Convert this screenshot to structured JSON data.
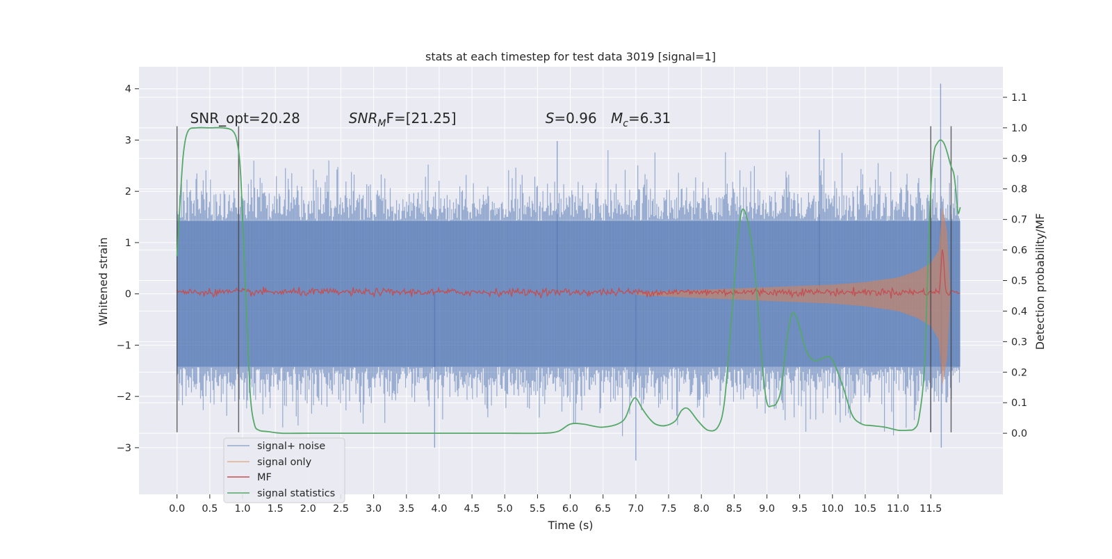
{
  "chart_data": {
    "type": "line",
    "title": "stats at each timestep for test data 3019 [signal=1]",
    "xlabel": "Time (s)",
    "ylabel_left": "Whitened strain",
    "ylabel_right": "Detection probability/MF",
    "xlim": [
      -0.58,
      12.6
    ],
    "ylim_left": [
      -3.91,
      4.43
    ],
    "ylim_right": [
      -0.2,
      1.2
    ],
    "x_ticks": [
      "0.0",
      "0.5",
      "1.0",
      "1.5",
      "2.0",
      "2.5",
      "3.0",
      "3.5",
      "4.0",
      "4.5",
      "5.0",
      "5.5",
      "6.0",
      "6.5",
      "7.0",
      "7.5",
      "8.0",
      "8.5",
      "9.0",
      "9.5",
      "10.0",
      "10.5",
      "11.0",
      "11.5"
    ],
    "y_ticks_left": [
      "−3",
      "−2",
      "−1",
      "0",
      "1",
      "2",
      "3",
      "4"
    ],
    "y_ticks_right": [
      "0.0",
      "0.1",
      "0.2",
      "0.3",
      "0.4",
      "0.5",
      "0.6",
      "0.7",
      "0.8",
      "0.9",
      "1.0",
      "1.1"
    ],
    "grid": true,
    "legend_position": "lower-left",
    "annotations": [
      {
        "text": "SNR_opt=20.28",
        "x": 0.2,
        "y": 3.33
      },
      {
        "text": "SNR",
        "sub": "M",
        "tail": "F=[21.25]",
        "italic": true,
        "x": 2.62,
        "y": 3.33
      },
      {
        "text": "S",
        "tail": "=0.96",
        "italic": true,
        "x": 5.62,
        "y": 3.33
      },
      {
        "text": "M",
        "sub": "c",
        "tail": "=6.31",
        "italic": true,
        "x": 6.62,
        "y": 3.33
      }
    ],
    "vertical_lines": [
      {
        "x": 0.0,
        "y_range": [
          -2.7,
          3.27
        ]
      },
      {
        "x": 0.94,
        "y_range": [
          -2.7,
          3.27
        ]
      },
      {
        "x": 11.5,
        "y_range": [
          -2.7,
          3.27
        ]
      },
      {
        "x": 11.81,
        "y_range": [
          -2.7,
          3.27
        ]
      }
    ],
    "series": [
      {
        "name": "signal+ noise",
        "color": "#4c72b0",
        "axis": "left",
        "kind": "noise-band",
        "x_range": [
          0.0,
          11.95
        ],
        "core_amplitude": 1.42,
        "notable_peaks": [
          [
            11.65,
            4.1
          ],
          [
            7.0,
            -3.25
          ],
          [
            11.66,
            -3.0
          ],
          [
            3.93,
            -3.0
          ],
          [
            9.8,
            3.2
          ],
          [
            5.8,
            2.98
          ]
        ]
      },
      {
        "name": "signal only",
        "color": "#dd8452",
        "axis": "left",
        "kind": "chirp-envelope",
        "x": [
          7.0,
          8.0,
          9.0,
          10.0,
          10.5,
          11.0,
          11.3,
          11.5,
          11.62,
          11.68,
          11.75,
          11.8
        ],
        "amplitude": [
          0.02,
          0.08,
          0.13,
          0.18,
          0.23,
          0.32,
          0.45,
          0.6,
          0.85,
          1.7,
          1.2,
          0.0
        ]
      },
      {
        "name": "MF",
        "color": "#c44e52",
        "axis": "right",
        "kind": "noisy-flat",
        "x_range": [
          0.0,
          11.95
        ],
        "level": 0.462,
        "peak": [
          11.68,
          0.62
        ]
      },
      {
        "name": "signal statistics",
        "color": "#55a868",
        "axis": "right",
        "kind": "line",
        "x": [
          0.0,
          0.05,
          0.1,
          0.17,
          0.3,
          0.5,
          0.7,
          0.85,
          0.92,
          0.97,
          1.02,
          1.07,
          1.12,
          1.18,
          1.25,
          1.4,
          1.6,
          2.0,
          2.5,
          3.0,
          3.5,
          4.0,
          4.5,
          5.0,
          5.5,
          5.8,
          6.0,
          6.2,
          6.5,
          6.8,
          6.93,
          7.0,
          7.1,
          7.2,
          7.3,
          7.45,
          7.6,
          7.7,
          7.8,
          7.95,
          8.1,
          8.25,
          8.35,
          8.45,
          8.55,
          8.62,
          8.7,
          8.78,
          8.85,
          8.93,
          9.0,
          9.08,
          9.15,
          9.22,
          9.3,
          9.38,
          9.45,
          9.52,
          9.6,
          9.7,
          9.8,
          9.9,
          10.0,
          10.15,
          10.3,
          10.45,
          10.6,
          10.8,
          11.0,
          11.15,
          11.25,
          11.32,
          11.4,
          11.45,
          11.5,
          11.55,
          11.6,
          11.65,
          11.7,
          11.75,
          11.8,
          11.85,
          11.88,
          11.9,
          11.92,
          11.95
        ],
        "y": [
          0.58,
          0.77,
          0.92,
          0.99,
          1.0,
          1.0,
          1.0,
          0.99,
          0.95,
          0.85,
          0.6,
          0.35,
          0.12,
          0.03,
          0.01,
          0.005,
          0.0,
          0.0,
          0.0,
          0.0,
          0.0,
          0.0,
          0.0,
          0.0,
          0.0,
          0.005,
          0.03,
          0.03,
          0.02,
          0.04,
          0.1,
          0.115,
          0.08,
          0.05,
          0.03,
          0.025,
          0.04,
          0.075,
          0.08,
          0.04,
          0.01,
          0.02,
          0.1,
          0.35,
          0.62,
          0.73,
          0.7,
          0.6,
          0.45,
          0.22,
          0.1,
          0.09,
          0.1,
          0.15,
          0.3,
          0.39,
          0.38,
          0.33,
          0.27,
          0.24,
          0.24,
          0.25,
          0.24,
          0.16,
          0.06,
          0.03,
          0.025,
          0.02,
          0.01,
          0.01,
          0.015,
          0.05,
          0.2,
          0.5,
          0.8,
          0.92,
          0.95,
          0.96,
          0.95,
          0.92,
          0.88,
          0.85,
          0.8,
          0.75,
          0.72,
          0.74
        ]
      }
    ]
  }
}
